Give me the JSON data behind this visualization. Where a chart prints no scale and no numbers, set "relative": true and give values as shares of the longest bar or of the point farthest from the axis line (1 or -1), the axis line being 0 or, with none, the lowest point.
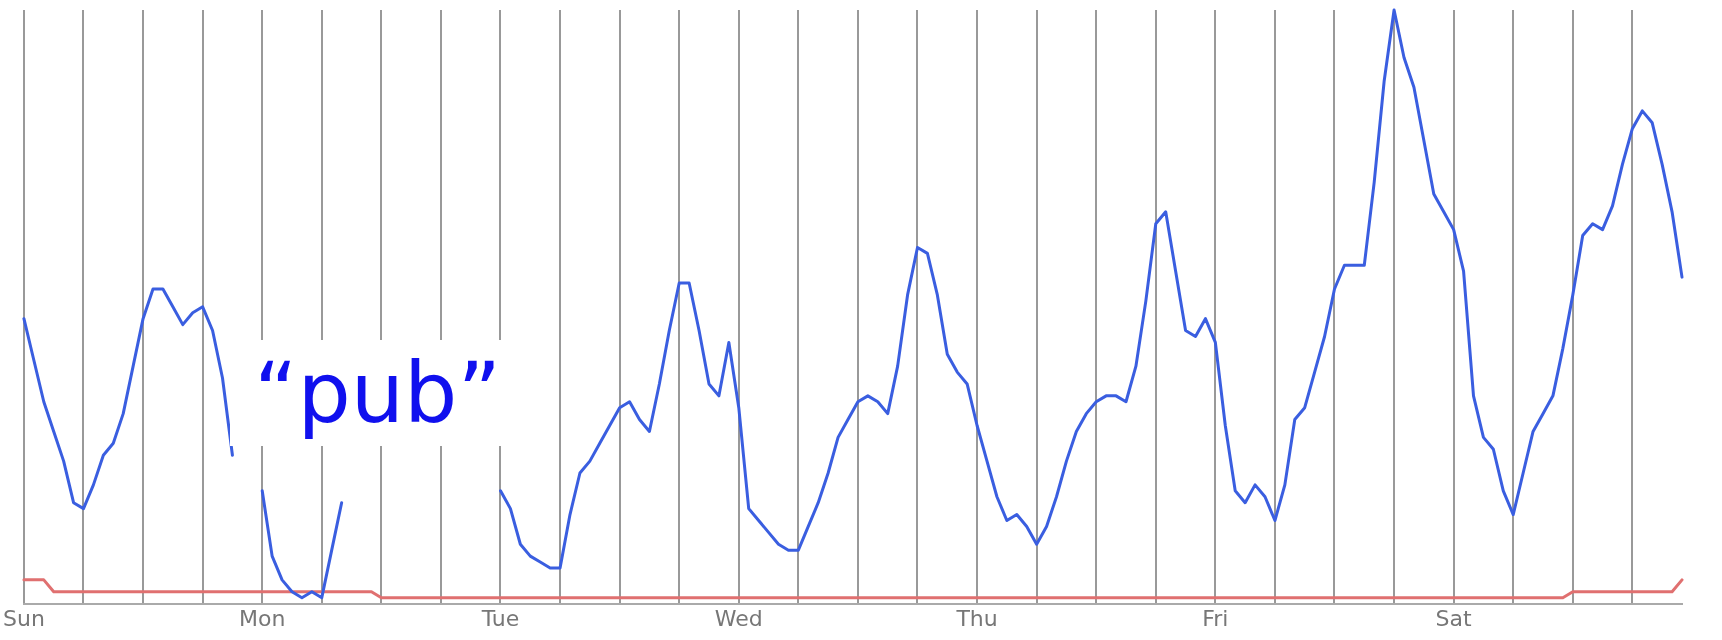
{
  "chart_data": {
    "type": "line",
    "relative": true,
    "grid": "x",
    "legend": false,
    "marker": "none",
    "line_style": "solid",
    "annotations": [
      "“pub”"
    ],
    "categories": [
      "Sun",
      null,
      null,
      null,
      null,
      null,
      null,
      null,
      null,
      null,
      null,
      null,
      null,
      null,
      null,
      null,
      null,
      null,
      null,
      null,
      null,
      null,
      null,
      null,
      "Mon",
      null,
      null,
      null,
      null,
      null,
      null,
      null,
      null,
      null,
      null,
      null,
      null,
      null,
      null,
      null,
      null,
      null,
      null,
      null,
      null,
      null,
      null,
      null,
      "Tue",
      null,
      null,
      null,
      null,
      null,
      null,
      null,
      null,
      null,
      null,
      null,
      null,
      null,
      null,
      null,
      null,
      null,
      null,
      null,
      null,
      null,
      null,
      null,
      "Wed",
      null,
      null,
      null,
      null,
      null,
      null,
      null,
      null,
      null,
      null,
      null,
      null,
      null,
      null,
      null,
      null,
      null,
      null,
      null,
      null,
      null,
      null,
      null,
      "Thu",
      null,
      null,
      null,
      null,
      null,
      null,
      null,
      null,
      null,
      null,
      null,
      null,
      null,
      null,
      null,
      null,
      null,
      null,
      null,
      null,
      null,
      null,
      null,
      "Fri",
      null,
      null,
      null,
      null,
      null,
      null,
      null,
      null,
      null,
      null,
      null,
      null,
      null,
      null,
      null,
      null,
      null,
      null,
      null,
      null,
      null,
      null,
      null,
      "Sat",
      null,
      null,
      null,
      null,
      null,
      null,
      null,
      null,
      null,
      null,
      null,
      null,
      null,
      null,
      null,
      null,
      null,
      null,
      null,
      null,
      null,
      null,
      null
    ],
    "series": [
      {
        "color": "#3a5ee0",
        "values": [
          0.48,
          0.41,
          0.34,
          0.29,
          0.24,
          0.17,
          0.16,
          0.2,
          0.25,
          0.27,
          0.32,
          0.4,
          0.48,
          0.53,
          0.53,
          0.5,
          0.47,
          0.49,
          0.5,
          0.46,
          0.38,
          0.25,
          null,
          null,
          0.19,
          0.08,
          0.04,
          0.02,
          0.01,
          0.02,
          0.01,
          0.09,
          0.17,
          null,
          null,
          null,
          null,
          null,
          null,
          null,
          null,
          null,
          null,
          null,
          null,
          null,
          null,
          null,
          0.19,
          0.16,
          0.1,
          0.08,
          0.07,
          0.06,
          0.06,
          0.15,
          0.22,
          0.24,
          0.27,
          0.3,
          0.33,
          0.34,
          0.31,
          0.29,
          0.37,
          0.46,
          0.54,
          0.54,
          0.46,
          0.37,
          0.35,
          0.44,
          0.33,
          0.16,
          0.14,
          0.12,
          0.1,
          0.09,
          0.09,
          0.13,
          0.17,
          0.22,
          0.28,
          0.31,
          0.34,
          0.35,
          0.34,
          0.32,
          0.4,
          0.52,
          0.6,
          0.59,
          0.52,
          0.42,
          0.39,
          0.37,
          0.3,
          0.24,
          0.18,
          0.14,
          0.15,
          0.13,
          0.1,
          0.13,
          0.18,
          0.24,
          0.29,
          0.32,
          0.34,
          0.35,
          0.35,
          0.34,
          0.4,
          0.51,
          0.64,
          0.66,
          0.56,
          0.46,
          0.45,
          0.48,
          0.44,
          0.3,
          0.19,
          0.17,
          0.2,
          0.18,
          0.14,
          0.2,
          0.31,
          0.33,
          0.39,
          0.45,
          0.53,
          0.57,
          0.57,
          0.57,
          0.71,
          0.88,
          1,
          0.92,
          0.87,
          0.78,
          0.69,
          0.66,
          0.63,
          0.56,
          0.35,
          0.28,
          0.26,
          0.19,
          0.15,
          0.22,
          0.29,
          0.32,
          0.35,
          0.43,
          0.52,
          0.62,
          0.64,
          0.63,
          0.67,
          0.74,
          0.8,
          0.83,
          0.81,
          0.74,
          0.66,
          0.55
        ]
      },
      {
        "color": "#e07070",
        "values": [
          0.04,
          0.04,
          0.04,
          0.02,
          0.02,
          0.02,
          0.02,
          0.02,
          0.02,
          0.02,
          0.02,
          0.02,
          0.02,
          0.02,
          0.02,
          0.02,
          0.02,
          0.02,
          0.02,
          0.02,
          0.02,
          0.02,
          0.02,
          0.02,
          0.02,
          0.02,
          0.02,
          0.02,
          0.02,
          0.02,
          0.02,
          0.02,
          0.02,
          0.02,
          0.02,
          0.02,
          0.01,
          0.01,
          0.01,
          0.01,
          0.01,
          0.01,
          0.01,
          0.01,
          0.01,
          0.01,
          0.01,
          0.01,
          0.01,
          0.01,
          0.01,
          0.01,
          0.01,
          0.01,
          0.01,
          0.01,
          0.01,
          0.01,
          0.01,
          0.01,
          0.01,
          0.01,
          0.01,
          0.01,
          0.01,
          0.01,
          0.01,
          0.01,
          0.01,
          0.01,
          0.01,
          0.01,
          0.01,
          0.01,
          0.01,
          0.01,
          0.01,
          0.01,
          0.01,
          0.01,
          0.01,
          0.01,
          0.01,
          0.01,
          0.01,
          0.01,
          0.01,
          0.01,
          0.01,
          0.01,
          0.01,
          0.01,
          0.01,
          0.01,
          0.01,
          0.01,
          0.01,
          0.01,
          0.01,
          0.01,
          0.01,
          0.01,
          0.01,
          0.01,
          0.01,
          0.01,
          0.01,
          0.01,
          0.01,
          0.01,
          0.01,
          0.01,
          0.01,
          0.01,
          0.01,
          0.01,
          0.01,
          0.01,
          0.01,
          0.01,
          0.01,
          0.01,
          0.01,
          0.01,
          0.01,
          0.01,
          0.01,
          0.01,
          0.01,
          0.01,
          0.01,
          0.01,
          0.01,
          0.01,
          0.01,
          0.01,
          0.01,
          0.01,
          0.01,
          0.01,
          0.01,
          0.01,
          0.01,
          0.01,
          0.01,
          0.01,
          0.01,
          0.01,
          0.01,
          0.01,
          0.01,
          0.01,
          0.01,
          0.01,
          0.01,
          0.01,
          0.02,
          0.02,
          0.02,
          0.02,
          0.02,
          0.02,
          0.02,
          0.02,
          0.02,
          0.02,
          0.02,
          0.04
        ]
      }
    ]
  }
}
